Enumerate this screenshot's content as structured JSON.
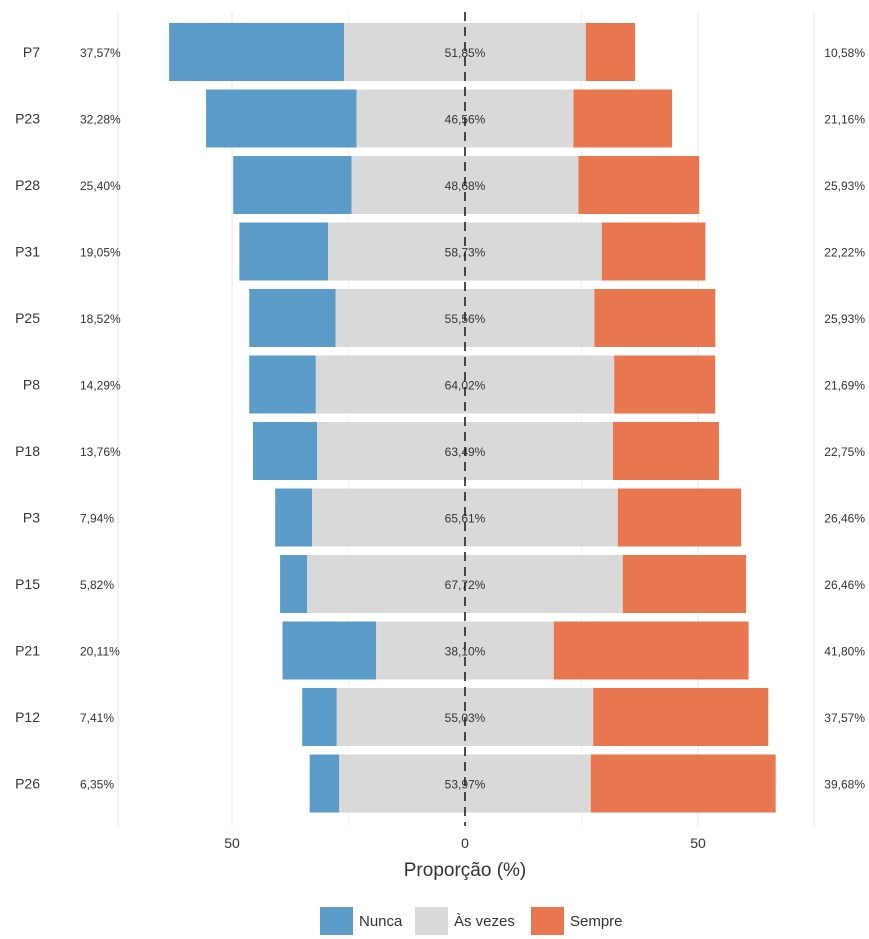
{
  "chart_data": {
    "type": "bar",
    "subtype": "diverging-stacked",
    "xlabel": "Proporção (%)",
    "x_ticks": [
      "50",
      "0",
      "50"
    ],
    "grid": true,
    "legend_position": "bottom",
    "categories": [
      "P7",
      "P23",
      "P28",
      "P31",
      "P25",
      "P8",
      "P18",
      "P3",
      "P15",
      "P21",
      "P12",
      "P26"
    ],
    "series": [
      {
        "name": "Nunca",
        "color": "#5b9bc8",
        "values": [
          37.57,
          32.28,
          25.4,
          19.05,
          18.52,
          14.29,
          13.76,
          7.94,
          5.82,
          20.11,
          7.41,
          6.35
        ]
      },
      {
        "name": "Às vezes",
        "color": "#d9d9d9",
        "values": [
          51.85,
          46.56,
          48.68,
          58.73,
          55.56,
          64.02,
          63.49,
          65.61,
          67.72,
          38.1,
          55.03,
          53.97
        ]
      },
      {
        "name": "Sempre",
        "color": "#e8764f",
        "values": [
          10.58,
          21.16,
          25.93,
          22.22,
          25.93,
          21.69,
          22.75,
          26.46,
          26.46,
          41.8,
          37.57,
          39.68
        ]
      }
    ],
    "left_labels": [
      "37,57%",
      "32,28%",
      "25,40%",
      "19,05%",
      "18,52%",
      "14,29%",
      "13,76%",
      "7,94%",
      "5,82%",
      "20,11%",
      "7,41%",
      "6,35%"
    ],
    "center_labels": [
      "51,85%",
      "46,56%",
      "48,68%",
      "58,73%",
      "55,56%",
      "64,02%",
      "63,49%",
      "65,61%",
      "67,72%",
      "38,10%",
      "55,03%",
      "53,97%"
    ],
    "right_labels": [
      "10,58%",
      "21,16%",
      "25,93%",
      "22,22%",
      "25,93%",
      "21,69%",
      "22,75%",
      "26,46%",
      "26,46%",
      "41,80%",
      "37,57%",
      "39,68%"
    ]
  },
  "legend": {
    "items": [
      {
        "label": "Nunca",
        "color": "#5b9bc8"
      },
      {
        "label": "Às vezes",
        "color": "#d9d9d9"
      },
      {
        "label": "Sempre",
        "color": "#e8764f"
      }
    ]
  }
}
